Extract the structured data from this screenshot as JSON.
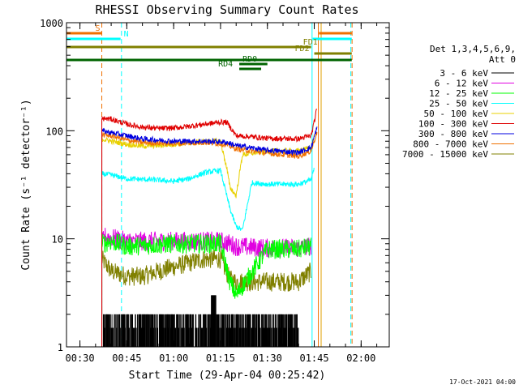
{
  "chart_data": {
    "type": "line",
    "title": "RHESSI Observing Summary Count Rates",
    "xlabel": "Start Time (29-Apr-04 00:25:42)",
    "ylabel": "Count Rate (s⁻¹ detector⁻¹)",
    "y_scale": "log",
    "ylim": [
      1,
      1000
    ],
    "xlim_minutes": [
      25.7,
      129
    ],
    "x_ticks": [
      {
        "label": "00:30",
        "minute": 30
      },
      {
        "label": "00:45",
        "minute": 45
      },
      {
        "label": "01:00",
        "minute": 60
      },
      {
        "label": "01:15",
        "minute": 75
      },
      {
        "label": "01:30",
        "minute": 90
      },
      {
        "label": "01:45",
        "minute": 105
      },
      {
        "label": "02:00",
        "minute": 120
      }
    ],
    "y_ticks": [
      {
        "label": "1",
        "value": 1
      },
      {
        "label": "10",
        "value": 10
      },
      {
        "label": "100",
        "value": 100
      },
      {
        "label": "1000",
        "value": 1000
      }
    ],
    "legend_title": [
      "Det 1,3,4,5,6,9,",
      "Att 0"
    ],
    "legend_position": "right",
    "series": [
      {
        "name": "3 - 6 keV",
        "color": "#000000",
        "kind": "counts_low",
        "x": [
          37.5,
          72.5,
          77,
          100
        ],
        "y": [
          1.8,
          2.3,
          1.8,
          1.8
        ]
      },
      {
        "name": "6 - 12 keV",
        "color": "#e000e0",
        "x": [
          37,
          38,
          45,
          60,
          75,
          78,
          80,
          90,
          100,
          104
        ],
        "y": [
          9,
          10.5,
          9.5,
          9.5,
          9.5,
          9,
          8.5,
          8.2,
          8.2,
          8.5
        ]
      },
      {
        "name": "12 - 25 keV",
        "color": "#00ff00",
        "x": [
          37,
          40,
          45,
          60,
          75,
          78,
          80,
          90,
          100,
          104
        ],
        "y": [
          9,
          9.5,
          8.5,
          9,
          9,
          4,
          3,
          8,
          8,
          8.5
        ]
      },
      {
        "name": "25 - 50 keV",
        "color": "#00ffff",
        "x": [
          37,
          40,
          45,
          55,
          60,
          65,
          70,
          75,
          78,
          80,
          82,
          85,
          90,
          100,
          104,
          105
        ],
        "y": [
          40,
          39,
          36,
          35,
          34,
          36,
          41,
          43,
          19,
          13,
          12,
          33,
          32,
          32,
          35,
          45
        ]
      },
      {
        "name": "50 - 100 keV",
        "color": "#e8d000",
        "x": [
          37,
          40,
          45,
          50,
          55,
          60,
          65,
          70,
          75,
          77,
          78,
          80,
          82,
          90,
          100,
          104,
          105
        ],
        "y": [
          84,
          80,
          75,
          72,
          73,
          75,
          77,
          80,
          80,
          45,
          30,
          25,
          60,
          65,
          65,
          70,
          90
        ]
      },
      {
        "name": "100 - 300 keV",
        "color": "#e00000",
        "x": [
          37,
          40,
          45,
          50,
          55,
          60,
          65,
          70,
          75,
          77,
          80,
          85,
          90,
          100,
          104,
          105,
          106
        ],
        "y": [
          130,
          128,
          115,
          108,
          105,
          106,
          110,
          115,
          120,
          120,
          90,
          88,
          85,
          84,
          90,
          120,
          170
        ]
      },
      {
        "name": "300 - 800 keV",
        "color": "#0000e0",
        "x": [
          37,
          40,
          45,
          50,
          55,
          60,
          65,
          70,
          75,
          77,
          80,
          90,
          100,
          104,
          106
        ],
        "y": [
          100,
          96,
          90,
          84,
          82,
          80,
          80,
          80,
          79,
          78,
          73,
          66,
          63,
          70,
          110
        ]
      },
      {
        "name": "800 - 7000 keV",
        "color": "#f07000",
        "x": [
          37,
          40,
          45,
          50,
          55,
          60,
          65,
          70,
          75,
          77,
          80,
          90,
          100,
          104,
          106
        ],
        "y": [
          92,
          90,
          82,
          78,
          77,
          76,
          77,
          78,
          76,
          74,
          68,
          62,
          58,
          65,
          100
        ]
      },
      {
        "name": "7000 - 15000 keV",
        "color": "#808000",
        "x": [
          37,
          40,
          45,
          50,
          55,
          60,
          65,
          70,
          75,
          78,
          80,
          90,
          100,
          104
        ],
        "y": [
          6.5,
          5,
          4.5,
          4.5,
          5,
          5.5,
          6,
          6.5,
          6.5,
          4.2,
          4,
          4,
          4,
          5
        ]
      }
    ],
    "state_bars": [
      {
        "label": "S",
        "color": "#f07000",
        "segments": [
          [
            25.8,
            37
          ],
          [
            106.5,
            117
          ]
        ],
        "level": 1
      },
      {
        "label": "N",
        "color": "#00ffff",
        "segments": [
          [
            25.8,
            43
          ],
          [
            104.5,
            117
          ]
        ],
        "level": 2
      },
      {
        "label": "FD1",
        "color": "#808000",
        "segments": [
          [
            25.8,
            104
          ]
        ],
        "level": 3
      },
      {
        "label": "FD2",
        "color": "#808000",
        "segments": [
          [
            105,
            117
          ]
        ],
        "level": 4
      },
      {
        "label": "",
        "color": "#006400",
        "segments": [
          [
            25.8,
            117
          ]
        ],
        "level": 5
      },
      {
        "label": "RD0",
        "color": "#006400",
        "segments": [
          [
            81,
            90
          ]
        ],
        "level": 6
      },
      {
        "label": "RD4",
        "color": "#006400",
        "segments": [
          [
            81,
            88
          ]
        ],
        "level": 7
      }
    ],
    "vertical_markers": [
      {
        "minute": 37,
        "color": "#f07000",
        "dashed": true
      },
      {
        "minute": 43.3,
        "color": "#00ffff",
        "dashed": true
      },
      {
        "minute": 104.3,
        "color": "#00ffff",
        "dashed": false
      },
      {
        "minute": 106.3,
        "color": "#f07000",
        "dashed": false
      },
      {
        "minute": 107.2,
        "color": "#e0a000",
        "dashed": false
      },
      {
        "minute": 116.7,
        "color": "#00ffff",
        "dashed": true
      },
      {
        "minute": 117.1,
        "color": "#f07000",
        "dashed": true
      }
    ],
    "footer_date": "17-Oct-2021 04:00"
  }
}
